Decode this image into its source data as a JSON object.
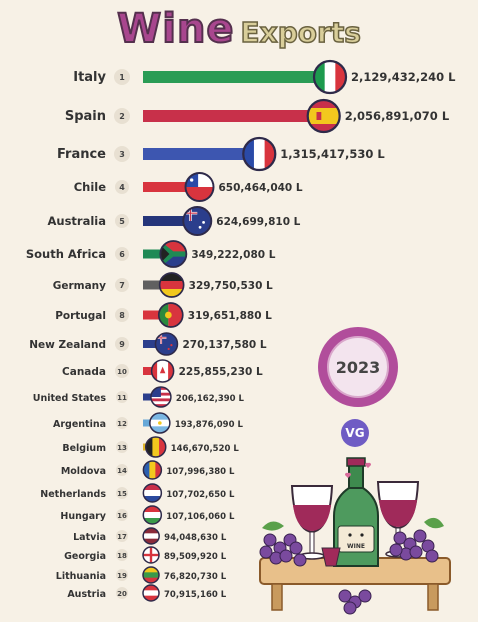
{
  "header": {
    "title_main": "Wine",
    "title_sub": "Exports"
  },
  "badges": {
    "year": "2023",
    "logo": "VG",
    "bottle_label": "WINE"
  },
  "chart_data": {
    "type": "bar",
    "title": "Wine Exports",
    "categories": [
      "Italy",
      "Spain",
      "France",
      "Chile",
      "Australia",
      "South Africa",
      "Germany",
      "Portugal",
      "New Zealand",
      "Canada",
      "United States",
      "Argentina",
      "Belgium",
      "Moldova",
      "Netherlands",
      "Hungary",
      "Latvia",
      "Georgia",
      "Lithuania",
      "Austria"
    ],
    "ranks": [
      "1",
      "2",
      "3",
      "4",
      "5",
      "6",
      "7",
      "8",
      "9",
      "10",
      "11",
      "12",
      "13",
      "14",
      "15",
      "16",
      "17",
      "18",
      "19",
      "20"
    ],
    "values": [
      2129432240,
      2056891070,
      1315417530,
      650464040,
      624699810,
      349222080,
      329750530,
      319651880,
      270137580,
      225855230,
      206162390,
      193876090,
      146670520,
      107996380,
      107702650,
      107106060,
      94048630,
      89509920,
      76820730,
      70915160
    ],
    "value_labels": [
      "2,129,432,240 L",
      "2,056,891,070 L",
      "1,315,417,530 L",
      "650,464,040 L",
      "624,699,810 L",
      "349,222,080 L",
      "329,750,530 L",
      "319,651,880 L",
      "270,137,580 L",
      "225,855,230 L",
      "206,162,390 L",
      "193,876,090 L",
      "146,670,520 L",
      "107,996,380 L",
      "107,702,650 L",
      "107,106,060 L",
      "94,048,630 L",
      "89,509,920 L",
      "76,820,730 L",
      "70,915,160 L"
    ],
    "bar_colors": [
      "#2a9c55",
      "#c8304a",
      "#3d56b0",
      "#d8343e",
      "#25357a",
      "#1f8a55",
      "#606060",
      "#d8343e",
      "#2b3e8c",
      "#d8343e",
      "#2b3e8c",
      "#66a8d8",
      "#e0b52a",
      "#2b5fb0",
      "#c8304a",
      "#c8304a",
      "#8a2a3a",
      "#d8343e",
      "#3a9a4a",
      "#d8343e"
    ],
    "flags": [
      "italy-flag",
      "spain-flag",
      "france-flag",
      "chile-flag",
      "australia-flag",
      "south-africa-flag",
      "germany-flag",
      "portugal-flag",
      "new-zealand-flag",
      "canada-flag",
      "united-states-flag",
      "argentina-flag",
      "belgium-flag",
      "moldova-flag",
      "netherlands-flag",
      "hungary-flag",
      "latvia-flag",
      "georgia-flag",
      "lithuania-flag",
      "austria-flag"
    ],
    "xlim": [
      0,
      2129432240
    ]
  }
}
